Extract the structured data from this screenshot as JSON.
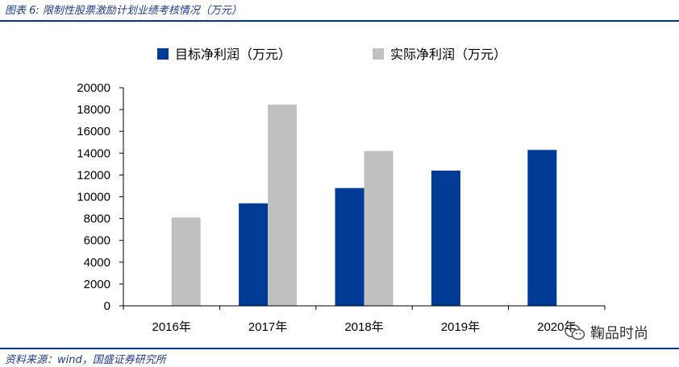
{
  "header": {
    "title": "图表 6: 限制性股票激励计划业绩考核情况（万元）"
  },
  "footer": {
    "source": "资料来源：wind，国盛证券研究所"
  },
  "watermark": {
    "text": "鞠品时尚",
    "icon": "wechat-icon"
  },
  "colors": {
    "accent": "#003399",
    "target": "#003b96",
    "actual": "#c0c0c0"
  },
  "chart_data": {
    "type": "bar",
    "title": "",
    "xlabel": "",
    "ylabel": "",
    "categories": [
      "2016年",
      "2017年",
      "2018年",
      "2019年",
      "2020年"
    ],
    "series": [
      {
        "name": "目标净利润（万元）",
        "values": [
          null,
          9400,
          10800,
          12400,
          14300
        ]
      },
      {
        "name": "实际净利润（万元）",
        "values": [
          8100,
          18450,
          14200,
          null,
          null
        ]
      }
    ],
    "ylim": [
      0,
      20000
    ],
    "yticks": [
      0,
      2000,
      4000,
      6000,
      8000,
      10000,
      12000,
      14000,
      16000,
      18000,
      20000
    ],
    "grid": false,
    "legend": "top-left"
  }
}
